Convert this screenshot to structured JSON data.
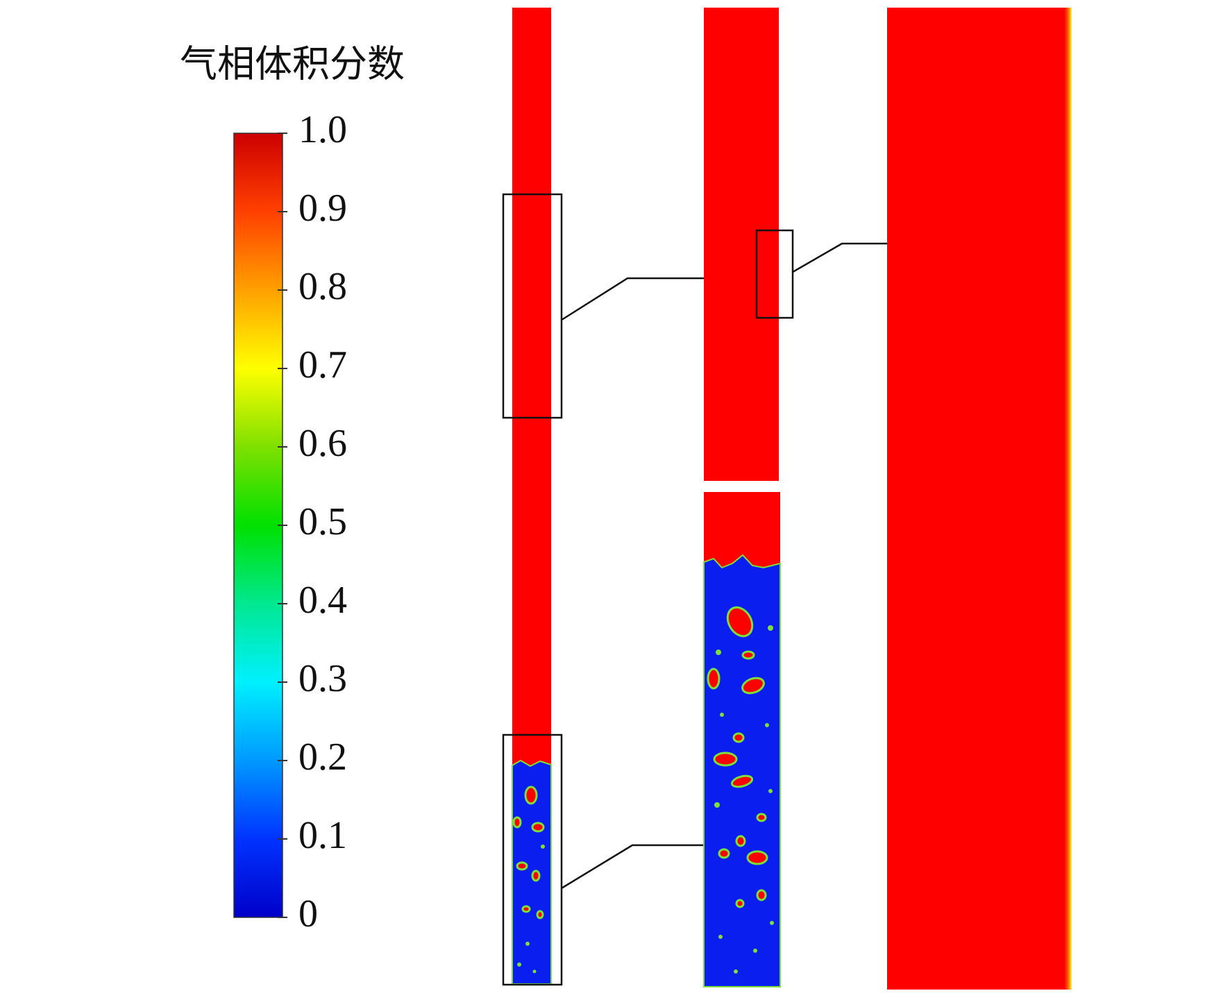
{
  "colorbar": {
    "title": "气相体积分数",
    "lim": [
      0,
      1
    ],
    "ticks": [
      0,
      0.1,
      0.2,
      0.3,
      0.4,
      0.5,
      0.6,
      0.7,
      0.8,
      0.9,
      {
        "value": 1,
        "label": "1.0"
      }
    ]
  }
}
